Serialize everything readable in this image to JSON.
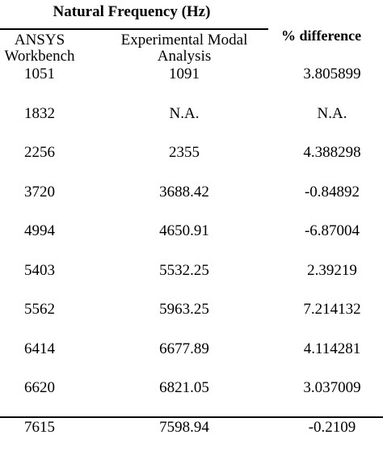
{
  "table": {
    "group_header": "Natural Frequency (Hz)",
    "columns": {
      "ansys": "ANSYS\nWorkbench",
      "experimental": "Experimental Modal\nAnalysis",
      "difference": "% difference"
    },
    "rows": [
      {
        "ansys": "1051",
        "experimental": "1091",
        "difference": "3.805899"
      },
      {
        "ansys": "1832",
        "experimental": "N.A.",
        "difference": "N.A."
      },
      {
        "ansys": "2256",
        "experimental": "2355",
        "difference": "4.388298"
      },
      {
        "ansys": "3720",
        "experimental": "3688.42",
        "difference": "-0.84892"
      },
      {
        "ansys": "4994",
        "experimental": "4650.91",
        "difference": "-6.87004"
      },
      {
        "ansys": "5403",
        "experimental": "5532.25",
        "difference": "2.39219"
      },
      {
        "ansys": "5562",
        "experimental": "5963.25",
        "difference": "7.214132"
      },
      {
        "ansys": "6414",
        "experimental": "6677.89",
        "difference": "4.114281"
      },
      {
        "ansys": "6620",
        "experimental": "6821.05",
        "difference": "3.037009"
      },
      {
        "ansys": "7615",
        "experimental": "7598.94",
        "difference": "-0.2109"
      }
    ]
  }
}
